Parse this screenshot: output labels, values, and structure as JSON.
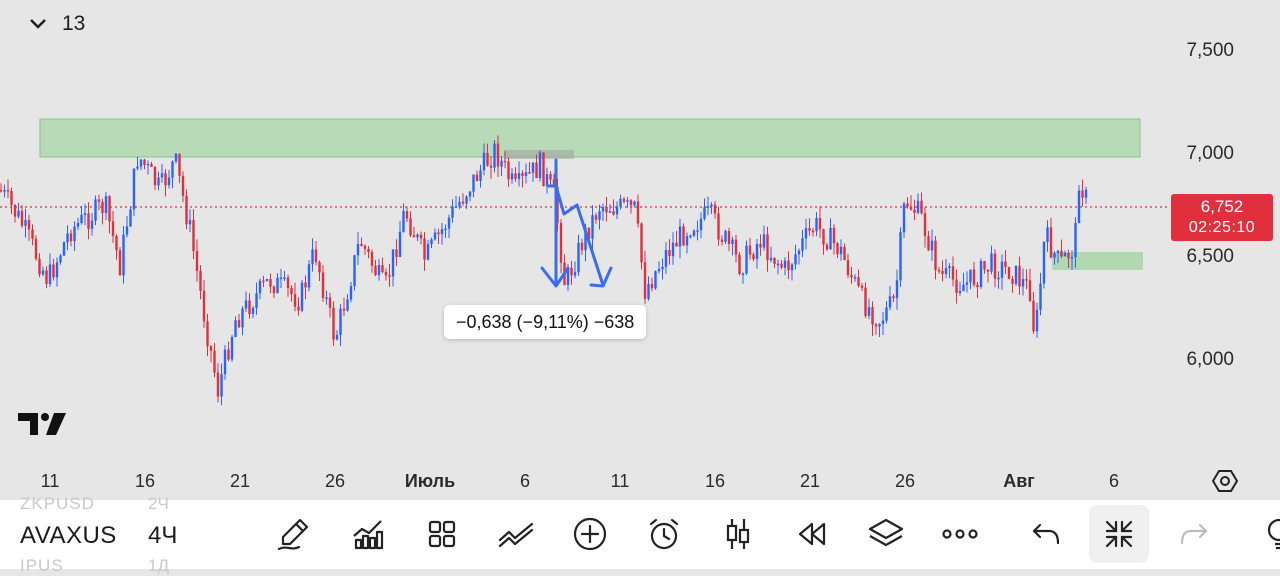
{
  "header": {
    "collapse_icon": "chevron-down-icon",
    "indicator_count": "13"
  },
  "price_axis": {
    "labels": [
      "7,500",
      "7,000",
      "6,500",
      "6,000"
    ]
  },
  "current_price": {
    "value": "6,752",
    "countdown": "02:25:10",
    "color": "#e0303e"
  },
  "measure_tooltip": {
    "text": "−0,638 (−9,11%) −638"
  },
  "time_axis": {
    "labels": [
      "11",
      "16",
      "21",
      "26",
      "Июль",
      "6",
      "11",
      "16",
      "21",
      "26",
      "Авг",
      "6"
    ]
  },
  "colors": {
    "up": "#2962ff",
    "down": "#e0303e",
    "zone": "#a8d5a6",
    "drawing": "#3a6cf0"
  },
  "toolbar": {
    "symbol": "AVAXUS",
    "symbol_prev": "ZKPUSD",
    "symbol_next": "IPUS",
    "interval": "4Ч",
    "interval_prev": "2Ч",
    "interval_next": "1Д",
    "tools": [
      "draw-pen-icon",
      "indicators-icon",
      "layouts-icon",
      "trend-icon",
      "add-icon",
      "alert-clock-icon",
      "candle-type-icon",
      "replay-icon",
      "layers-icon",
      "more-icon",
      "undo-icon",
      "exit-fullscreen-icon",
      "redo-icon",
      "idea-icon"
    ]
  }
}
